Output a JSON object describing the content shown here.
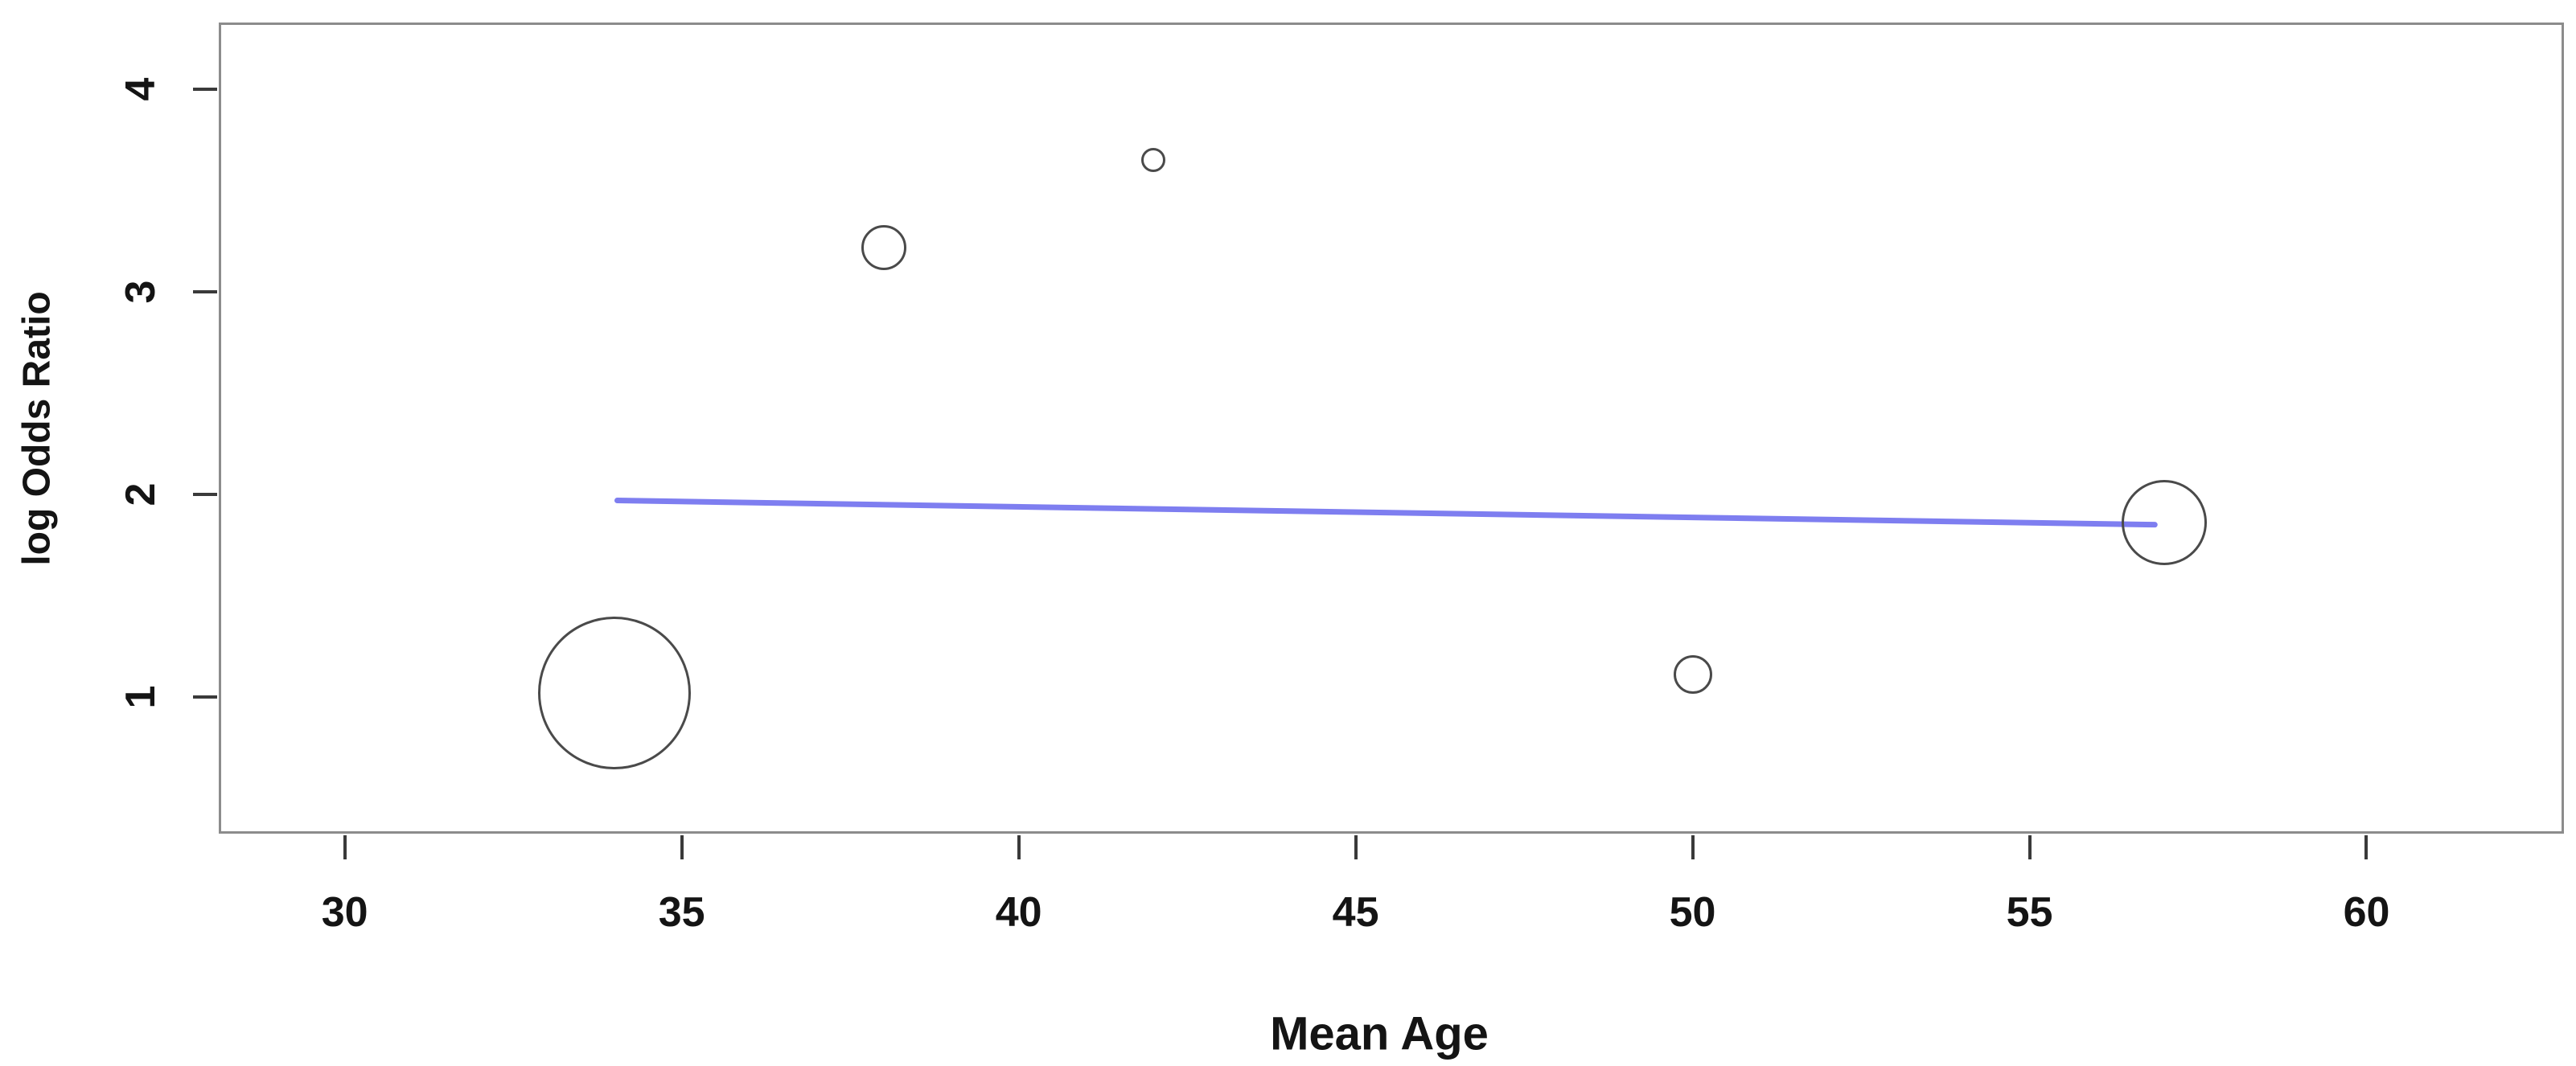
{
  "chart_data": {
    "type": "scatter",
    "subtype": "bubble-meta-regression",
    "title": "",
    "xlabel": "Mean Age",
    "ylabel": "log Odds Ratio",
    "xlim": [
      28.13,
      62.93
    ],
    "ylim": [
      0.325,
      4.33
    ],
    "x_ticks": [
      30,
      35,
      40,
      45,
      50,
      55,
      60
    ],
    "y_ticks": [
      1,
      2,
      3,
      4
    ],
    "grid": false,
    "legend": null,
    "points": [
      {
        "x": 34,
        "y": 1.02,
        "radius_px": 95
      },
      {
        "x": 38,
        "y": 3.22,
        "radius_px": 28
      },
      {
        "x": 42,
        "y": 3.65,
        "radius_px": 15
      },
      {
        "x": 50,
        "y": 1.11,
        "radius_px": 24
      },
      {
        "x": 57,
        "y": 1.86,
        "radius_px": 53
      }
    ],
    "regression_line": {
      "x1": 34.0,
      "y1": 1.97,
      "x2": 56.9,
      "y2": 1.85
    },
    "colors": {
      "line": "#7e7ef0",
      "circle_stroke": "#4a4a4a",
      "box_border": "#8c8c8c",
      "tick": "#3a3a3a",
      "text": "#141414",
      "background": "#ffffff"
    }
  }
}
